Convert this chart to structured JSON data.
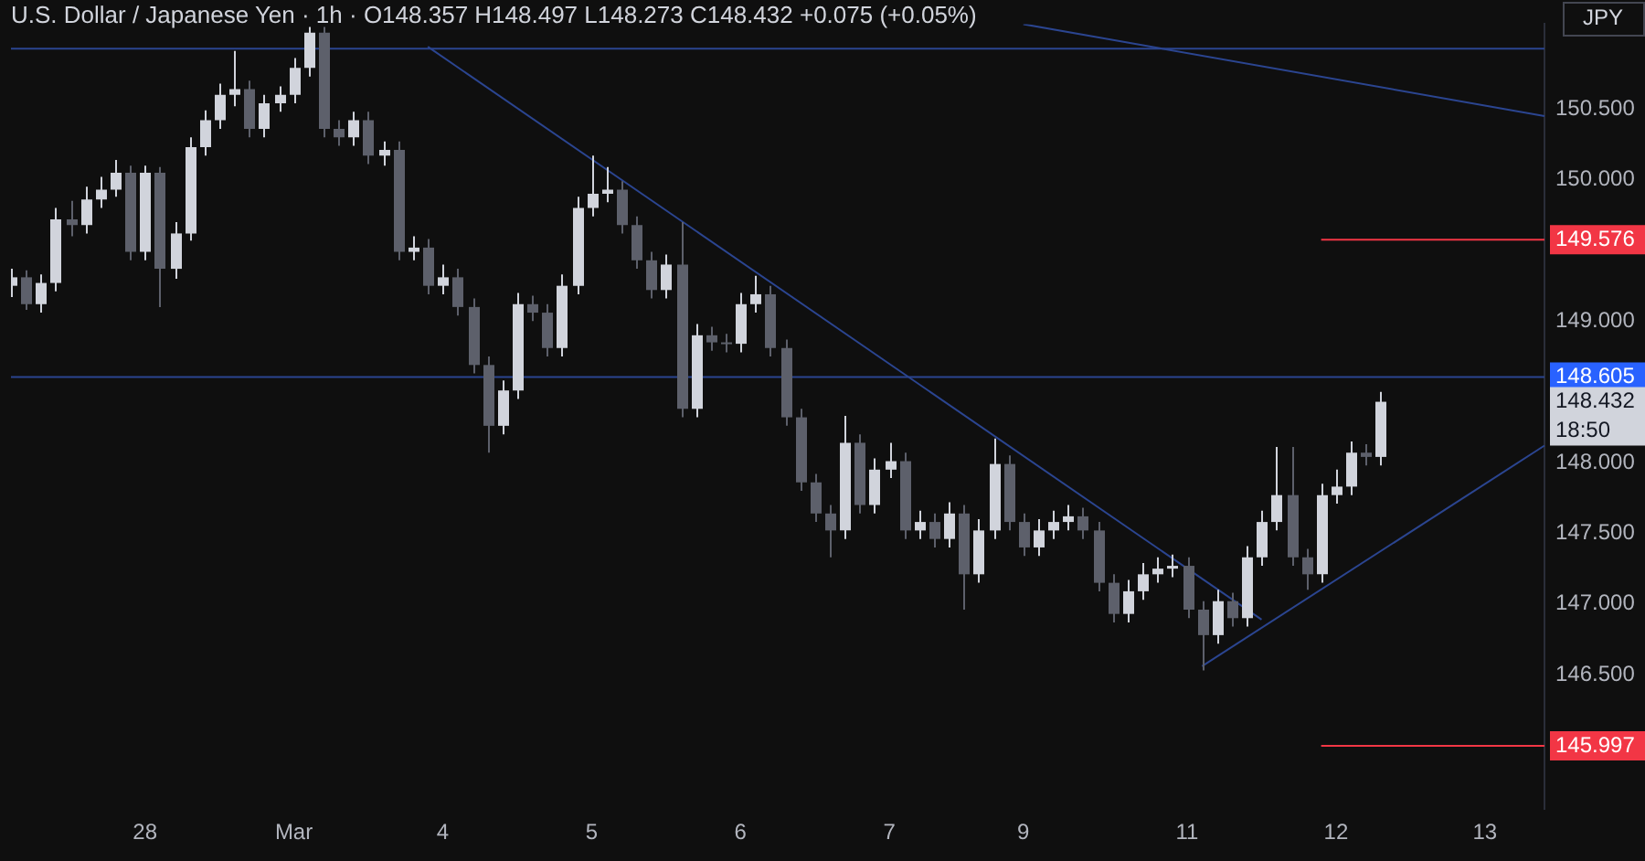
{
  "chart_data": {
    "type": "candlestick",
    "title": "U.S. Dollar / Japanese Yen · 1h · O148.357 H148.497 L148.273 C148.432 +0.075 (+0.05%)",
    "ylabel": "JPY",
    "categories": [
      null,
      null,
      null,
      null,
      null,
      null,
      null,
      null,
      null,
      "28",
      null,
      null,
      null,
      null,
      null,
      null,
      null,
      null,
      null,
      "Mar",
      null,
      null,
      null,
      null,
      null,
      null,
      null,
      null,
      null,
      "4",
      null,
      null,
      null,
      null,
      null,
      null,
      null,
      null,
      null,
      "5",
      null,
      null,
      null,
      null,
      null,
      null,
      null,
      null,
      null,
      "6",
      null,
      null,
      null,
      null,
      null,
      null,
      null,
      null,
      null,
      "7",
      null,
      null,
      null,
      null,
      null,
      null,
      null,
      null,
      "9",
      null,
      null,
      null,
      null,
      null,
      null,
      null,
      null,
      null,
      null,
      "11",
      null,
      null,
      null,
      null,
      null,
      null,
      null,
      null,
      null,
      "12",
      null,
      null,
      null,
      null,
      null,
      null,
      null,
      null,
      null,
      "13",
      null,
      null,
      null,
      null
    ],
    "ohlc": [
      [
        149.25,
        149.37,
        149.17,
        149.31
      ],
      [
        149.31,
        149.36,
        149.08,
        149.12
      ],
      [
        149.12,
        149.33,
        149.06,
        149.27
      ],
      [
        149.27,
        149.8,
        149.21,
        149.72
      ],
      [
        149.72,
        149.85,
        149.6,
        149.68
      ],
      [
        149.68,
        149.95,
        149.62,
        149.86
      ],
      [
        149.86,
        150.02,
        149.8,
        149.93
      ],
      [
        149.93,
        150.14,
        149.88,
        150.05
      ],
      [
        150.05,
        150.1,
        149.43,
        149.49
      ],
      [
        149.49,
        150.1,
        149.43,
        150.05
      ],
      [
        150.05,
        150.09,
        149.1,
        149.37
      ],
      [
        149.37,
        149.7,
        149.3,
        149.62
      ],
      [
        149.62,
        150.3,
        149.57,
        150.23
      ],
      [
        150.23,
        150.49,
        150.17,
        150.42
      ],
      [
        150.42,
        150.68,
        150.36,
        150.6
      ],
      [
        150.6,
        150.91,
        150.52,
        150.64
      ],
      [
        150.64,
        150.7,
        150.3,
        150.36
      ],
      [
        150.36,
        150.6,
        150.3,
        150.54
      ],
      [
        150.54,
        150.66,
        150.48,
        150.6
      ],
      [
        150.6,
        150.86,
        150.54,
        150.79
      ],
      [
        150.79,
        151.08,
        150.73,
        151.04
      ],
      [
        151.04,
        151.08,
        150.3,
        150.36
      ],
      [
        150.36,
        150.42,
        150.24,
        150.3
      ],
      [
        150.3,
        150.48,
        150.24,
        150.42
      ],
      [
        150.42,
        150.48,
        150.11,
        150.17
      ],
      [
        150.17,
        150.27,
        150.1,
        150.21
      ],
      [
        150.21,
        150.27,
        149.43,
        149.49
      ],
      [
        149.49,
        149.6,
        149.43,
        149.52
      ],
      [
        149.52,
        149.58,
        149.19,
        149.25
      ],
      [
        149.25,
        149.4,
        149.19,
        149.31
      ],
      [
        149.31,
        149.37,
        149.04,
        149.1
      ],
      [
        149.1,
        149.16,
        148.63,
        148.69
      ],
      [
        148.69,
        148.75,
        148.07,
        148.26
      ],
      [
        148.26,
        148.58,
        148.2,
        148.51
      ],
      [
        148.51,
        149.2,
        148.45,
        149.12
      ],
      [
        149.12,
        149.18,
        149.0,
        149.06
      ],
      [
        149.06,
        149.12,
        148.75,
        148.81
      ],
      [
        148.81,
        149.33,
        148.75,
        149.25
      ],
      [
        149.25,
        149.88,
        149.19,
        149.8
      ],
      [
        149.8,
        150.17,
        149.74,
        149.9
      ],
      [
        149.9,
        150.09,
        149.84,
        149.93
      ],
      [
        149.93,
        149.99,
        149.62,
        149.68
      ],
      [
        149.68,
        149.74,
        149.37,
        149.43
      ],
      [
        149.43,
        149.49,
        149.16,
        149.22
      ],
      [
        149.22,
        149.47,
        149.16,
        149.4
      ],
      [
        149.4,
        149.7,
        148.32,
        148.38
      ],
      [
        148.38,
        148.98,
        148.32,
        148.9
      ],
      [
        148.9,
        148.96,
        148.79,
        148.85
      ],
      [
        148.85,
        148.91,
        148.78,
        148.84
      ],
      [
        148.84,
        149.2,
        148.78,
        149.12
      ],
      [
        149.12,
        149.32,
        149.06,
        149.19
      ],
      [
        149.19,
        149.25,
        148.75,
        148.81
      ],
      [
        148.81,
        148.87,
        148.26,
        148.32
      ],
      [
        148.32,
        148.38,
        147.8,
        147.86
      ],
      [
        147.86,
        147.92,
        147.58,
        147.64
      ],
      [
        147.64,
        147.7,
        147.33,
        147.52
      ],
      [
        147.52,
        148.33,
        147.46,
        148.14
      ],
      [
        148.14,
        148.2,
        147.64,
        147.7
      ],
      [
        147.7,
        148.03,
        147.64,
        147.95
      ],
      [
        147.95,
        148.14,
        147.89,
        148.01
      ],
      [
        148.01,
        148.07,
        147.46,
        147.52
      ],
      [
        147.52,
        147.66,
        147.46,
        147.58
      ],
      [
        147.58,
        147.64,
        147.4,
        147.46
      ],
      [
        147.46,
        147.72,
        147.4,
        147.64
      ],
      [
        147.64,
        147.7,
        146.96,
        147.21
      ],
      [
        147.21,
        147.6,
        147.15,
        147.52
      ],
      [
        147.52,
        148.17,
        147.46,
        147.99
      ],
      [
        147.99,
        148.05,
        147.52,
        147.58
      ],
      [
        147.58,
        147.64,
        147.34,
        147.4
      ],
      [
        147.4,
        147.6,
        147.34,
        147.52
      ],
      [
        147.52,
        147.66,
        147.46,
        147.58
      ],
      [
        147.58,
        147.7,
        147.52,
        147.62
      ],
      [
        147.62,
        147.68,
        147.46,
        147.52
      ],
      [
        147.52,
        147.58,
        147.09,
        147.15
      ],
      [
        147.15,
        147.21,
        146.87,
        146.93
      ],
      [
        146.93,
        147.17,
        146.87,
        147.09
      ],
      [
        147.09,
        147.29,
        147.03,
        147.21
      ],
      [
        147.21,
        147.33,
        147.15,
        147.25
      ],
      [
        147.25,
        147.35,
        147.19,
        147.27
      ],
      [
        147.27,
        147.33,
        146.9,
        146.96
      ],
      [
        146.96,
        147.02,
        146.53,
        146.78
      ],
      [
        146.78,
        147.1,
        146.72,
        147.02
      ],
      [
        147.02,
        147.08,
        146.84,
        146.9
      ],
      [
        146.9,
        147.41,
        146.84,
        147.33
      ],
      [
        147.33,
        147.66,
        147.27,
        147.58
      ],
      [
        147.58,
        148.11,
        147.52,
        147.77
      ],
      [
        147.77,
        148.11,
        147.27,
        147.33
      ],
      [
        147.33,
        147.39,
        147.1,
        147.21
      ],
      [
        147.21,
        147.85,
        147.15,
        147.77
      ],
      [
        147.77,
        147.95,
        147.71,
        147.83
      ],
      [
        147.83,
        148.15,
        147.77,
        148.07
      ],
      [
        148.07,
        148.13,
        147.98,
        148.04
      ],
      [
        148.04,
        148.5,
        147.98,
        148.43
      ],
      null,
      null,
      null,
      null,
      null,
      null,
      null,
      null,
      null,
      null,
      null
    ],
    "colors": [
      "#d1d4dc",
      "#5d606b",
      "#d1d4dc",
      "#d1d4dc",
      "#5d606b",
      "#d1d4dc",
      "#d1d4dc",
      "#d1d4dc",
      "#5d606b",
      "#d1d4dc",
      "#5d606b",
      "#d1d4dc",
      "#d1d4dc",
      "#d1d4dc",
      "#d1d4dc",
      "#d1d4dc",
      "#5d606b",
      "#d1d4dc",
      "#d1d4dc",
      "#d1d4dc",
      "#d1d4dc",
      "#5d606b",
      "#5d606b",
      "#d1d4dc",
      "#5d606b",
      "#d1d4dc",
      "#5d606b",
      "#d1d4dc",
      "#5d606b",
      "#d1d4dc",
      "#5d606b",
      "#5d606b",
      "#5d606b",
      "#d1d4dc",
      "#d1d4dc",
      "#5d606b",
      "#5d606b",
      "#d1d4dc",
      "#d1d4dc",
      "#d1d4dc",
      "#d1d4dc",
      "#5d606b",
      "#5d606b",
      "#5d606b",
      "#d1d4dc",
      "#5d606b",
      "#d1d4dc",
      "#5d606b",
      "#5d606b",
      "#d1d4dc",
      "#d1d4dc",
      "#5d606b",
      "#5d606b",
      "#5d606b",
      "#5d606b",
      "#5d606b",
      "#d1d4dc",
      "#5d606b",
      "#d1d4dc",
      "#d1d4dc",
      "#5d606b",
      "#d1d4dc",
      "#5d606b",
      "#d1d4dc",
      "#5d606b",
      "#d1d4dc",
      "#d1d4dc",
      "#5d606b",
      "#5d606b",
      "#d1d4dc",
      "#d1d4dc",
      "#d1d4dc",
      "#5d606b",
      "#5d606b",
      "#5d606b",
      "#d1d4dc",
      "#d1d4dc",
      "#d1d4dc",
      "#d1d4dc",
      "#5d606b",
      "#5d606b",
      "#d1d4dc",
      "#5d606b",
      "#d1d4dc",
      "#d1d4dc",
      "#d1d4dc",
      "#5d606b",
      "#5d606b",
      "#d1d4dc",
      "#d1d4dc",
      "#d1d4dc",
      "#5d606b",
      "#d1d4dc",
      null,
      null,
      null,
      null,
      null,
      null,
      null,
      null,
      null,
      null,
      null
    ],
    "series": [
      {
        "type": "line",
        "color": "#2b4590",
        "values": [
          null,
          null,
          null,
          null,
          null,
          null,
          null,
          null,
          null,
          null,
          null,
          null,
          null,
          null,
          null,
          null,
          null,
          null,
          null,
          null,
          null,
          null,
          null,
          null,
          null,
          null,
          null,
          null,
          150.94,
          null,
          null,
          null,
          null,
          null,
          null,
          null,
          null,
          null,
          null,
          null,
          null,
          null,
          null,
          null,
          null,
          null,
          null,
          null,
          null,
          null,
          null,
          null,
          null,
          null,
          null,
          null,
          null,
          null,
          null,
          null,
          null,
          null,
          null,
          null,
          null,
          null,
          null,
          null,
          null,
          null,
          null,
          null,
          null,
          null,
          null,
          null,
          null,
          null,
          null,
          null,
          null,
          null,
          null,
          null,
          146.89,
          null,
          null,
          null,
          null,
          null,
          null,
          null,
          null,
          null,
          null,
          null,
          null,
          null,
          null,
          null,
          null,
          null,
          null,
          null
        ]
      },
      {
        "type": "line",
        "color": "#2b4590",
        "values": [
          null,
          null,
          null,
          null,
          null,
          null,
          null,
          null,
          null,
          null,
          null,
          null,
          null,
          null,
          null,
          null,
          null,
          null,
          null,
          null,
          null,
          null,
          null,
          null,
          null,
          null,
          null,
          null,
          null,
          null,
          null,
          null,
          null,
          null,
          null,
          null,
          null,
          null,
          null,
          null,
          null,
          null,
          null,
          null,
          null,
          null,
          null,
          null,
          null,
          null,
          null,
          null,
          null,
          null,
          null,
          null,
          null,
          null,
          null,
          null,
          null,
          null,
          null,
          null,
          null,
          null,
          null,
          null,
          151.1,
          null,
          null,
          null,
          null,
          null,
          null,
          null,
          null,
          null,
          null,
          null,
          null,
          null,
          null,
          null,
          null,
          null,
          null,
          null,
          null,
          null,
          null,
          null,
          null,
          null,
          null,
          null,
          null,
          null,
          null,
          null,
          null,
          null,
          null,
          150.45
        ]
      },
      {
        "type": "line",
        "color": "#2b4590",
        "values": [
          null,
          null,
          null,
          null,
          null,
          null,
          null,
          null,
          null,
          null,
          null,
          null,
          null,
          null,
          null,
          null,
          null,
          null,
          null,
          null,
          null,
          null,
          null,
          null,
          null,
          null,
          null,
          null,
          null,
          null,
          null,
          null,
          null,
          null,
          null,
          null,
          null,
          null,
          null,
          null,
          null,
          null,
          null,
          null,
          null,
          null,
          null,
          null,
          null,
          null,
          null,
          null,
          null,
          null,
          null,
          null,
          null,
          null,
          null,
          null,
          null,
          null,
          null,
          null,
          null,
          null,
          null,
          null,
          null,
          null,
          null,
          null,
          null,
          null,
          null,
          null,
          null,
          null,
          null,
          null,
          146.56,
          null,
          null,
          null,
          null,
          null,
          null,
          null,
          null,
          null,
          null,
          null,
          null,
          null,
          null,
          null,
          null,
          null,
          null,
          null,
          null,
          null,
          null,
          148.12
        ]
      },
      {
        "type": "line",
        "name": "149.576",
        "color": "#f23645",
        "values": [
          null,
          null,
          null,
          null,
          null,
          null,
          null,
          null,
          null,
          null,
          null,
          null,
          null,
          null,
          null,
          null,
          null,
          null,
          null,
          null,
          null,
          null,
          null,
          null,
          null,
          null,
          null,
          null,
          null,
          null,
          null,
          null,
          null,
          null,
          null,
          null,
          null,
          null,
          null,
          null,
          null,
          null,
          null,
          null,
          null,
          null,
          null,
          null,
          null,
          null,
          null,
          null,
          null,
          null,
          null,
          null,
          null,
          null,
          null,
          null,
          null,
          null,
          null,
          null,
          null,
          null,
          null,
          null,
          null,
          null,
          null,
          null,
          null,
          null,
          null,
          null,
          null,
          null,
          null,
          null,
          null,
          null,
          null,
          null,
          null,
          null,
          null,
          null,
          149.576,
          null,
          null,
          null,
          null,
          null,
          null,
          null,
          null,
          null,
          null,
          null,
          null,
          null,
          null,
          149.576
        ]
      },
      {
        "type": "line",
        "name": "145.997",
        "color": "#f23645",
        "values": [
          null,
          null,
          null,
          null,
          null,
          null,
          null,
          null,
          null,
          null,
          null,
          null,
          null,
          null,
          null,
          null,
          null,
          null,
          null,
          null,
          null,
          null,
          null,
          null,
          null,
          null,
          null,
          null,
          null,
          null,
          null,
          null,
          null,
          null,
          null,
          null,
          null,
          null,
          null,
          null,
          null,
          null,
          null,
          null,
          null,
          null,
          null,
          null,
          null,
          null,
          null,
          null,
          null,
          null,
          null,
          null,
          null,
          null,
          null,
          null,
          null,
          null,
          null,
          null,
          null,
          null,
          null,
          null,
          null,
          null,
          null,
          null,
          null,
          null,
          null,
          null,
          null,
          null,
          null,
          null,
          null,
          null,
          null,
          null,
          null,
          null,
          null,
          null,
          145.997,
          null,
          null,
          null,
          null,
          null,
          null,
          null,
          null,
          null,
          null,
          null,
          null,
          null,
          null,
          145.997
        ]
      }
    ],
    "ref_lines": [
      {
        "axis": "y",
        "value": 150.926,
        "color": "#2b4590"
      },
      {
        "axis": "y",
        "value": 148.605,
        "label": "148.605",
        "color": "#2b4590"
      }
    ],
    "annotations": [
      "148.432\n18:50"
    ],
    "ylim": [
      145.55,
      151.1
    ],
    "yticks": [
      {
        "value": 146.5,
        "label": "146.500"
      },
      {
        "value": 147,
        "label": "147.000"
      },
      {
        "value": 147.5,
        "label": "147.500"
      },
      {
        "value": 148,
        "label": "148.000"
      },
      {
        "value": 149,
        "label": "149.000"
      },
      {
        "value": 150,
        "label": "150.000"
      },
      {
        "value": 150.5,
        "label": "150.500"
      }
    ]
  }
}
